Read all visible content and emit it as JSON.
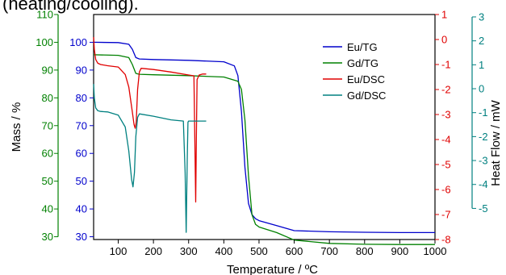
{
  "caption_fragment": "(heating/cooling).",
  "chart_data": {
    "type": "line",
    "x_axis": {
      "label": "Temperature / ºC",
      "range": [
        30,
        1000
      ],
      "ticks": [
        100,
        200,
        300,
        400,
        500,
        600,
        700,
        800,
        900,
        1000
      ],
      "color": "#000000"
    },
    "y_axes": {
      "mass_green": {
        "label": "Mass / %",
        "range": [
          29,
          110
        ],
        "ticks": [
          30,
          40,
          50,
          60,
          70,
          80,
          90,
          100,
          110
        ],
        "color": "#008000"
      },
      "mass_blue": {
        "label": "",
        "range": [
          29,
          110
        ],
        "ticks": [
          30,
          40,
          50,
          60,
          70,
          80,
          90,
          100
        ],
        "color": "#0000cc"
      },
      "heat_red": {
        "label": "",
        "range": [
          -8,
          1
        ],
        "ticks": [
          1,
          0,
          -1,
          -2,
          -3,
          -4,
          -5,
          -6,
          -7,
          -8
        ],
        "tick_labels": [
          "1",
          "0",
          "-1",
          "-2",
          "-3",
          "-4",
          "-5",
          "-6",
          "-7",
          "-8"
        ],
        "color": "#e00000"
      },
      "heat_teal": {
        "label": "Heat Flow / mW",
        "range": [
          -6.3,
          3.1
        ],
        "ticks": [
          3,
          2,
          1,
          0,
          -1,
          -2,
          -3,
          -4,
          -5
        ],
        "tick_labels": [
          "3",
          "2",
          "1",
          "0",
          "-1",
          "-2",
          "-3",
          "-4",
          "-5"
        ],
        "color": "#008080"
      }
    },
    "grid": false,
    "legend_position": "top-right",
    "series": [
      {
        "name": "Eu/TG",
        "axis": "mass_blue",
        "color": "#0000cc",
        "x": [
          30,
          100,
          130,
          140,
          150,
          160,
          200,
          300,
          400,
          430,
          440,
          450,
          460,
          470,
          480,
          490,
          500,
          550,
          600,
          700,
          800,
          900,
          1000
        ],
        "y": [
          100,
          99.9,
          99.3,
          97.5,
          94.5,
          94.0,
          93.8,
          93.5,
          93.0,
          91.5,
          88.0,
          75.0,
          55.0,
          42.0,
          38.0,
          36.5,
          35.8,
          34.0,
          32.2,
          31.8,
          31.6,
          31.5,
          31.5
        ]
      },
      {
        "name": "Gd/TG",
        "axis": "mass_green",
        "color": "#008000",
        "x": [
          30,
          100,
          130,
          140,
          150,
          160,
          200,
          300,
          400,
          440,
          450,
          460,
          470,
          480,
          490,
          500,
          550,
          600,
          700,
          800,
          900,
          1000
        ],
        "y": [
          95.5,
          95.3,
          94.5,
          92.0,
          88.8,
          88.5,
          88.3,
          88.0,
          87.5,
          86.0,
          83.0,
          72.0,
          52.0,
          38.0,
          34.5,
          33.5,
          31.5,
          28.8,
          27.6,
          27.3,
          27.2,
          27.2
        ]
      },
      {
        "name": "Eu/DSC",
        "axis": "heat_red",
        "color": "#e00000",
        "x": [
          30,
          32,
          36,
          42,
          50,
          70,
          100,
          120,
          130,
          140,
          145,
          148,
          151,
          155,
          160,
          165,
          200,
          250,
          300,
          315,
          317,
          320,
          322,
          324,
          330,
          340,
          350
        ],
        "y": [
          0.1,
          -0.4,
          -0.8,
          -0.95,
          -1.0,
          -1.05,
          -1.1,
          -1.4,
          -1.9,
          -2.9,
          -3.4,
          -3.55,
          -3.3,
          -2.0,
          -1.3,
          -1.15,
          -1.2,
          -1.3,
          -1.42,
          -1.45,
          -3.5,
          -6.5,
          -4.0,
          -1.6,
          -1.42,
          -1.38,
          -1.38
        ]
      },
      {
        "name": "Gd/DSC",
        "axis": "heat_teal",
        "color": "#008080",
        "x": [
          30,
          32,
          36,
          42,
          50,
          70,
          100,
          120,
          130,
          138,
          142,
          146,
          150,
          155,
          160,
          200,
          250,
          285,
          290,
          293,
          296,
          298,
          300,
          310,
          320,
          350
        ],
        "y": [
          0.2,
          -0.4,
          -0.8,
          -0.92,
          -0.95,
          -0.97,
          -1.1,
          -1.6,
          -2.6,
          -3.8,
          -4.1,
          -3.5,
          -2.0,
          -1.2,
          -1.05,
          -1.15,
          -1.3,
          -1.35,
          -3.5,
          -6.0,
          -3.0,
          -1.4,
          -1.35,
          -1.35,
          -1.35,
          -1.35
        ]
      }
    ]
  }
}
